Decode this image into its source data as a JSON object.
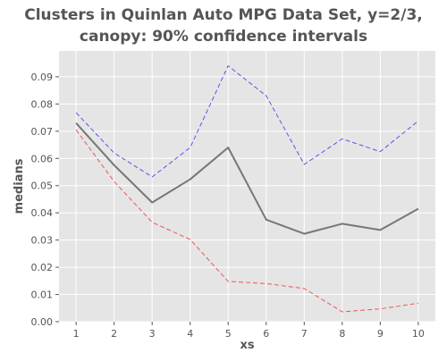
{
  "chart_data": {
    "type": "line",
    "title": "Clusters in Quinlan Auto MPG Data Set, y=2/3,\ncanopy: 90% confidence intervals",
    "xlabel": "xs",
    "ylabel": "medians",
    "x": [
      1,
      2,
      3,
      4,
      5,
      6,
      7,
      8,
      9,
      10
    ],
    "xlim": [
      0.55,
      10.45
    ],
    "ylim": [
      0.0,
      0.0995
    ],
    "x_ticks": [
      1,
      2,
      3,
      4,
      5,
      6,
      7,
      8,
      9,
      10
    ],
    "y_ticks": [
      0.0,
      0.01,
      0.02,
      0.03,
      0.04,
      0.05,
      0.06,
      0.07,
      0.08,
      0.09
    ],
    "y_tick_labels": [
      "0.00",
      "0.01",
      "0.02",
      "0.03",
      "0.04",
      "0.05",
      "0.06",
      "0.07",
      "0.08",
      "0.09"
    ],
    "grid": true,
    "style": {
      "background": "#e5e5e5",
      "grid_color": "#ffffff",
      "text_color": "#555555"
    },
    "series": [
      {
        "values": [
          0.0768,
          0.062,
          0.0532,
          0.064,
          0.094,
          0.083,
          0.0578,
          0.0672,
          0.0625,
          0.0738
        ],
        "color": "#5555ee",
        "dash": "dashed",
        "role": "upper"
      },
      {
        "values": [
          0.073,
          0.0575,
          0.0438,
          0.0523,
          0.064,
          0.0375,
          0.0323,
          0.036,
          0.0337,
          0.0415
        ],
        "color": "#777777",
        "dash": "solid",
        "role": "median"
      },
      {
        "values": [
          0.0705,
          0.0515,
          0.0365,
          0.0302,
          0.0148,
          0.014,
          0.0122,
          0.0036,
          0.0047,
          0.0068
        ],
        "color": "#ee5555",
        "dash": "dashed",
        "role": "lower"
      }
    ]
  }
}
